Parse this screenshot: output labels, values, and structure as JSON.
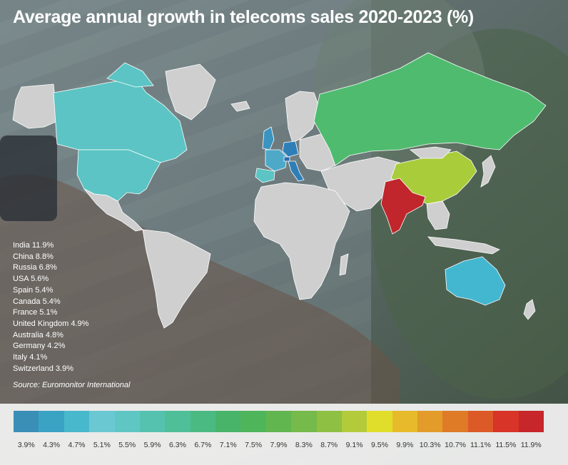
{
  "title": "Average annual growth in telecoms sales 2020-2023 (%)",
  "stats": [
    "India 11.9%",
    "China 8.8%",
    "Russia 6.8%",
    "USA 5.6%",
    "Spain 5.4%",
    "Canada 5.4%",
    "France 5.1%",
    "United Kingdom 4.9%",
    "Australia 4.8%",
    "Germany 4.2%",
    "Italy 4.1%",
    "Switzerland 3.9%"
  ],
  "source": "Source: Euromonitor International",
  "legend": {
    "colors": [
      "#3a8fb7",
      "#3aa3c3",
      "#48b8cc",
      "#6ac8d2",
      "#5fc6c4",
      "#55c2b0",
      "#4fbf99",
      "#4bba82",
      "#47b46a",
      "#4fb55a",
      "#62b650",
      "#75ba4a",
      "#8ec043",
      "#b3cb3a",
      "#e0de2b",
      "#e6ba2b",
      "#e39b2a",
      "#df7a27",
      "#dc5a27",
      "#d83427",
      "#c7262b"
    ],
    "labels": [
      "3.9%",
      "4.3%",
      "4.7%",
      "5.1%",
      "5.5%",
      "5.9%",
      "6.3%",
      "6.7%",
      "7.1%",
      "7.5%",
      "7.9%",
      "8.3%",
      "8.7%",
      "9.1%",
      "9.5%",
      "9.9%",
      "10.3%",
      "10.7%",
      "11.1%",
      "11.5%",
      "11.9%"
    ]
  },
  "colors": {
    "india": "#c0262b",
    "china": "#a9cc3a",
    "russia": "#4fbb6f",
    "usa": "#5cc4c4",
    "canada": "#5cc4c4",
    "spain": "#5cc4c4",
    "france": "#4ea9c9",
    "uk": "#3b93c0",
    "australia": "#44b7d0",
    "germany": "#2e7fb8",
    "italy": "#2e7fb8",
    "switzerland": "#2a6eb0",
    "other": "#cfcfcf"
  }
}
